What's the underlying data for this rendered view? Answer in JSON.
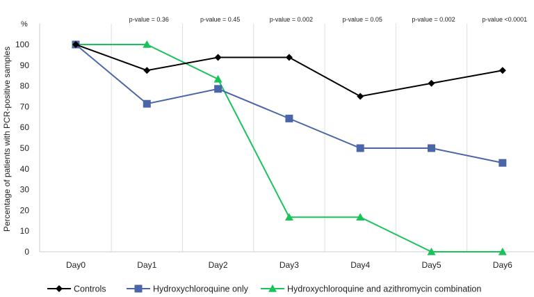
{
  "chart_data": {
    "type": "line",
    "ylabel": "Percentage of patients with PCR-positive samples",
    "yunit": "%",
    "ylim": [
      0,
      100
    ],
    "yticks": [
      0,
      10,
      20,
      30,
      40,
      50,
      60,
      70,
      80,
      90,
      100
    ],
    "categories": [
      "Day0",
      "Day1",
      "Day2",
      "Day3",
      "Day4",
      "Day5",
      "Day6"
    ],
    "pvalues": [
      "",
      "p-value = 0.36",
      "p-value = 0.45",
      "p-value = 0.002",
      "p-value = 0.05",
      "p-value = 0.002",
      "p-value <0.0001"
    ],
    "grid": "vertical",
    "legend_position": "bottom",
    "series": [
      {
        "name": "Controls",
        "color": "#000000",
        "marker": "diamond",
        "values": [
          100,
          87.5,
          93.8,
          93.8,
          75,
          81.3,
          87.5
        ]
      },
      {
        "name": "Hydroxychloroquine only",
        "color": "#4a66a8",
        "marker": "square",
        "values": [
          100,
          71.4,
          78.6,
          64.3,
          50,
          50,
          42.9
        ]
      },
      {
        "name": "Hydroxychloroquine and azithromycin combination",
        "color": "#19c35a",
        "marker": "triangle",
        "values": [
          100,
          100,
          83.3,
          16.7,
          16.7,
          0,
          0
        ]
      }
    ]
  }
}
